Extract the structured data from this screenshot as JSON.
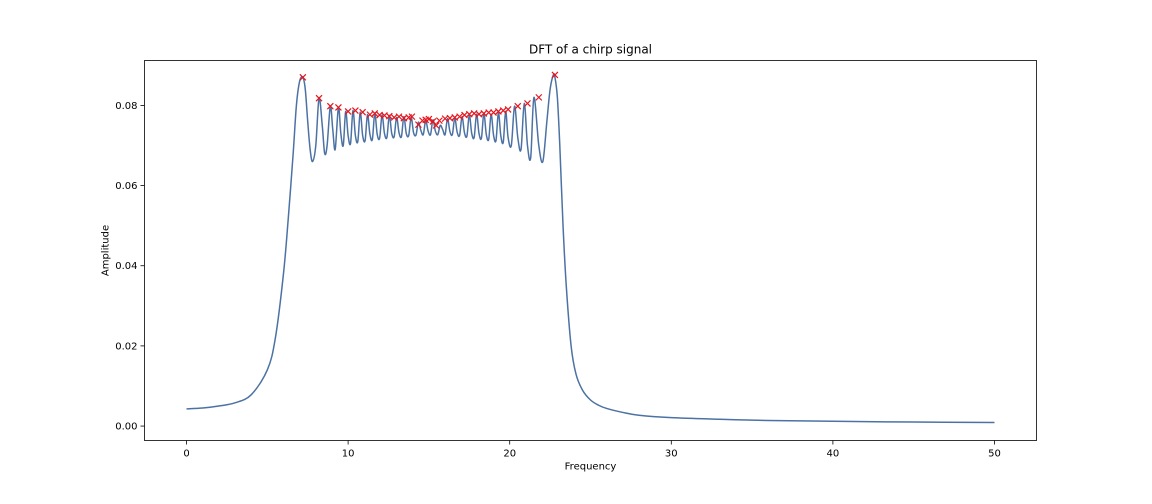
{
  "chart_data": {
    "type": "line",
    "title": "DFT of a chirp signal",
    "xlabel": "Frequency",
    "ylabel": "Amplitude",
    "xlim": [
      -2.6,
      52.6
    ],
    "ylim": [
      -0.0036,
      0.0912
    ],
    "xticks": [
      0,
      10,
      20,
      30,
      40,
      50
    ],
    "xtick_labels": [
      "0",
      "10",
      "20",
      "30",
      "40",
      "50"
    ],
    "yticks": [
      0.0,
      0.02,
      0.04,
      0.06,
      0.08
    ],
    "ytick_labels": [
      "0.00",
      "0.02",
      "0.04",
      "0.06",
      "0.08"
    ],
    "grid": false,
    "series": [
      {
        "type": "line",
        "color": "#4c72a4",
        "x": [
          0,
          1,
          2,
          3,
          4,
          5,
          5.5,
          6,
          6.3,
          6.6,
          6.8,
          7.0,
          7.2,
          7.35,
          7.5,
          7.65,
          7.8,
          8.0,
          8.2,
          8.4,
          8.55,
          8.7,
          8.9,
          9.05,
          9.2,
          9.4,
          9.55,
          9.7,
          9.85,
          10.0,
          10.15,
          10.3,
          10.45,
          10.6,
          10.75,
          10.9,
          11.05,
          11.2,
          11.35,
          11.5,
          11.65,
          11.8,
          11.95,
          12.1,
          12.25,
          12.4,
          12.55,
          12.7,
          12.85,
          13.0,
          13.15,
          13.3,
          13.45,
          13.6,
          13.75,
          13.9,
          14.05,
          14.2,
          14.35,
          14.5,
          14.65,
          14.8,
          14.95,
          15.1,
          15.25,
          15.4,
          15.55,
          15.7,
          15.85,
          16.0,
          16.15,
          16.3,
          16.45,
          16.6,
          16.75,
          16.9,
          17.05,
          17.2,
          17.35,
          17.5,
          17.65,
          17.8,
          17.95,
          18.1,
          18.25,
          18.4,
          18.55,
          18.7,
          18.85,
          19.0,
          19.15,
          19.3,
          19.45,
          19.6,
          19.75,
          19.9,
          20.1,
          20.3,
          20.5,
          20.7,
          20.9,
          21.1,
          21.3,
          21.5,
          21.8,
          22.05,
          22.3,
          22.5,
          22.7,
          22.8,
          22.95,
          23.1,
          23.3,
          23.5,
          23.8,
          24.1,
          24.5,
          25,
          25.5,
          26,
          27,
          28,
          30,
          33,
          36,
          40,
          45,
          50
        ],
        "y": [
          0.0043,
          0.0045,
          0.005,
          0.0058,
          0.0078,
          0.014,
          0.022,
          0.038,
          0.052,
          0.068,
          0.08,
          0.086,
          0.087,
          0.084,
          0.076,
          0.069,
          0.066,
          0.07,
          0.0818,
          0.075,
          0.068,
          0.07,
          0.0798,
          0.074,
          0.069,
          0.0795,
          0.073,
          0.07,
          0.0785,
          0.0725,
          0.0705,
          0.0787,
          0.0725,
          0.071,
          0.0783,
          0.0725,
          0.0712,
          0.0777,
          0.0728,
          0.0715,
          0.078,
          0.0728,
          0.0718,
          0.0776,
          0.073,
          0.072,
          0.0775,
          0.073,
          0.0722,
          0.077,
          0.0732,
          0.0722,
          0.0772,
          0.073,
          0.0725,
          0.077,
          0.0732,
          0.0726,
          0.0758,
          0.0738,
          0.0727,
          0.0762,
          0.0736,
          0.0727,
          0.0764,
          0.0736,
          0.0727,
          0.075,
          0.074,
          0.0727,
          0.0767,
          0.0735,
          0.0727,
          0.0768,
          0.0733,
          0.0725,
          0.0772,
          0.0732,
          0.0723,
          0.0776,
          0.073,
          0.072,
          0.0778,
          0.073,
          0.0718,
          0.078,
          0.0728,
          0.0715,
          0.0778,
          0.0726,
          0.0712,
          0.0782,
          0.0724,
          0.0708,
          0.0785,
          0.072,
          0.07,
          0.0798,
          0.072,
          0.069,
          0.0805,
          0.07,
          0.067,
          0.082,
          0.07,
          0.066,
          0.076,
          0.084,
          0.0876,
          0.087,
          0.082,
          0.07,
          0.05,
          0.035,
          0.02,
          0.013,
          0.009,
          0.0065,
          0.0052,
          0.0044,
          0.0034,
          0.0027,
          0.0021,
          0.0017,
          0.0014,
          0.0012,
          0.001,
          0.0009
        ]
      },
      {
        "type": "scatter",
        "marker": "x",
        "color": "#e8141c",
        "x": [
          7.2,
          8.2,
          8.9,
          9.4,
          10.0,
          10.45,
          10.9,
          11.35,
          11.65,
          11.95,
          12.25,
          12.55,
          12.85,
          13.15,
          13.45,
          13.75,
          13.95,
          14.35,
          14.6,
          14.8,
          15.0,
          15.25,
          15.45,
          15.65,
          16.0,
          16.3,
          16.6,
          16.9,
          17.2,
          17.5,
          17.8,
          18.1,
          18.4,
          18.7,
          19.0,
          19.3,
          19.6,
          19.9,
          20.5,
          21.1,
          21.8,
          22.8
        ],
        "y": [
          0.087,
          0.0818,
          0.0798,
          0.0795,
          0.0785,
          0.0787,
          0.0783,
          0.0777,
          0.078,
          0.0776,
          0.0775,
          0.0773,
          0.077,
          0.0772,
          0.0768,
          0.077,
          0.0772,
          0.0752,
          0.0762,
          0.0764,
          0.0766,
          0.076,
          0.075,
          0.0762,
          0.0767,
          0.0768,
          0.077,
          0.0772,
          0.0776,
          0.0778,
          0.078,
          0.0778,
          0.078,
          0.0782,
          0.0782,
          0.0785,
          0.0787,
          0.079,
          0.0798,
          0.0805,
          0.082,
          0.0876
        ]
      }
    ]
  }
}
